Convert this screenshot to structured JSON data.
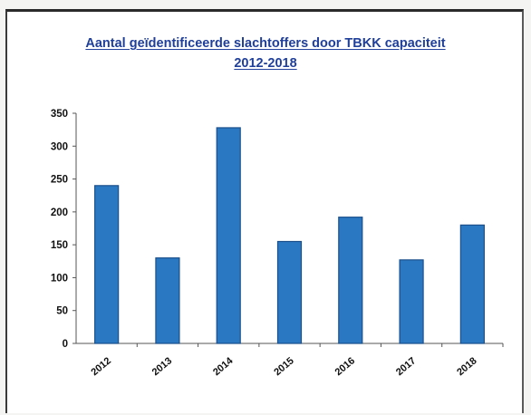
{
  "chart_data": {
    "type": "bar",
    "title": "Aantal geïdentificeerde slachtoffers door TBKK capaciteit",
    "subtitle": "2012-2018",
    "categories": [
      "2012",
      "2013",
      "2014",
      "2015",
      "2016",
      "2017",
      "2018"
    ],
    "values": [
      240,
      130,
      328,
      155,
      192,
      127,
      180
    ],
    "yticks": [
      "0",
      "50",
      "100",
      "150",
      "200",
      "250",
      "300",
      "350"
    ],
    "ylim": [
      0,
      350
    ],
    "grid": false,
    "legend": "none",
    "bar_color": "#2b78c2"
  }
}
